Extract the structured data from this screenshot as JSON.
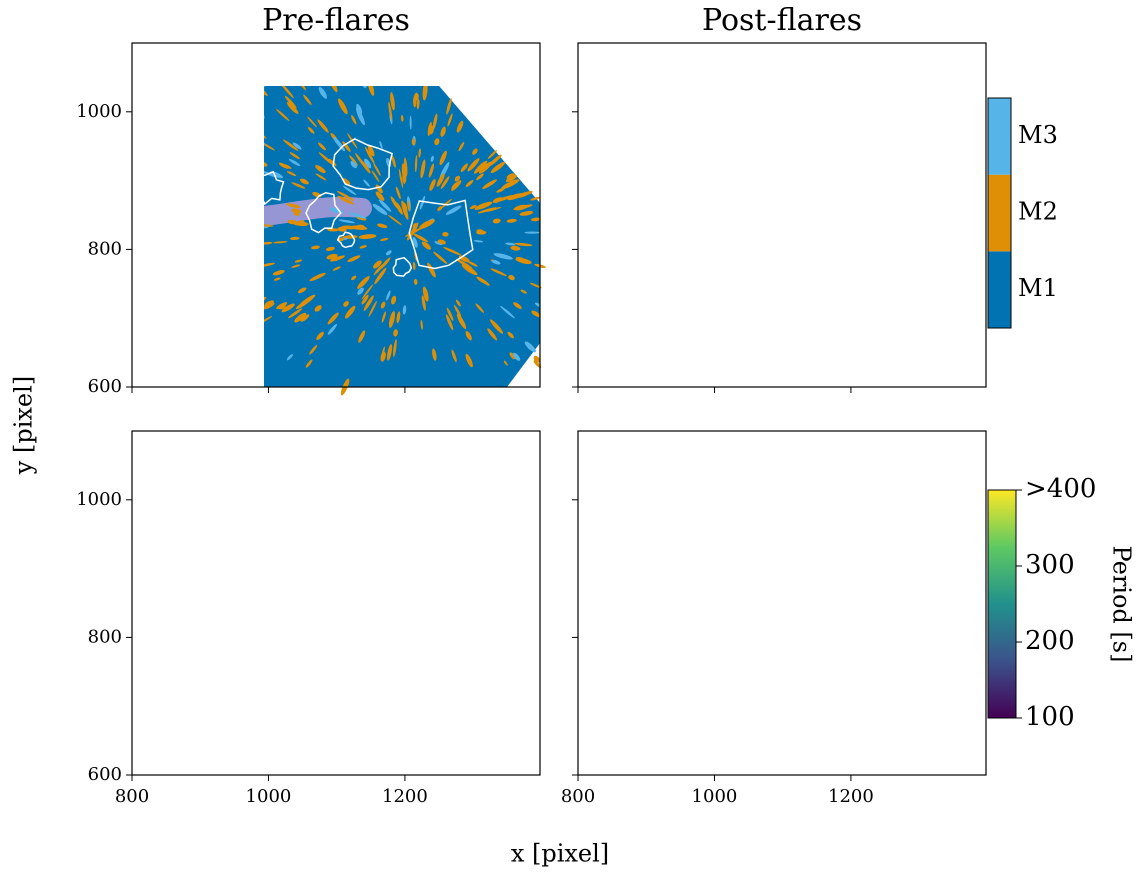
{
  "chart_data": {
    "type": "image",
    "columns": [
      "Pre-flares",
      "Post-flares"
    ],
    "xlabel": "x [pixel]",
    "ylabel": "y [pixel]",
    "xlim": [
      800,
      1398
    ],
    "xticks": [
      800,
      1000,
      1200
    ],
    "ylim": [
      600,
      1100
    ],
    "yticks": [
      600,
      800,
      1000
    ],
    "category_colorbar": {
      "labels": [
        "M1",
        "M2",
        "M3"
      ],
      "colors": [
        "#0173b2",
        "#de8f05",
        "#56b4e9"
      ]
    },
    "period_colorbar": {
      "label": "Period [s]",
      "lim": [
        100,
        400
      ],
      "ticks": [
        100,
        200,
        300,
        {
          "value": 400,
          "label": ">400"
        }
      ]
    }
  }
}
